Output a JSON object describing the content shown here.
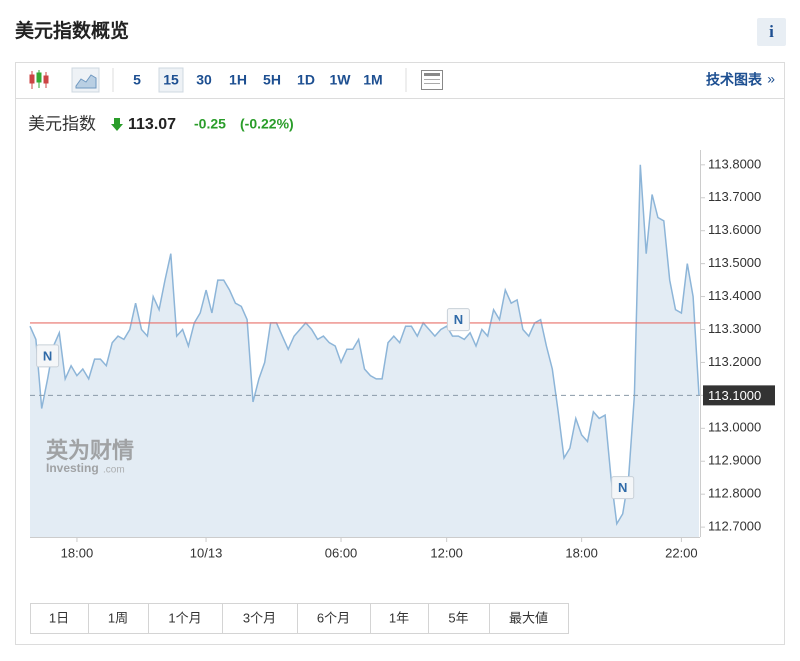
{
  "header": {
    "title": "美元指数概览",
    "info": "i"
  },
  "toolbar": {
    "intervals": [
      "5",
      "15",
      "30",
      "1H",
      "5H",
      "1D",
      "1W",
      "1M"
    ],
    "selected": "15",
    "tech_chart": "技术图表",
    "more": "»"
  },
  "quote": {
    "name": "美元指数",
    "price": "113.07",
    "change": "-0.25",
    "change_pct": "(-0.22%)"
  },
  "watermark": {
    "cn": "英为财情",
    "en": "Investing",
    "domain": ".com"
  },
  "ranges": [
    "1日",
    "1周",
    "1个月",
    "3个月",
    "6个月",
    "1年",
    "5年",
    "最大値"
  ],
  "chart_data": {
    "type": "area",
    "color": "#8db5d8",
    "values": [
      113.31,
      113.27,
      113.06,
      113.15,
      113.25,
      113.29,
      113.15,
      113.19,
      113.16,
      113.18,
      113.15,
      113.21,
      113.21,
      113.19,
      113.26,
      113.28,
      113.27,
      113.3,
      113.38,
      113.3,
      113.28,
      113.4,
      113.36,
      113.45,
      113.53,
      113.28,
      113.3,
      113.25,
      113.32,
      113.35,
      113.42,
      113.35,
      113.45,
      113.45,
      113.42,
      113.38,
      113.37,
      113.33,
      113.08,
      113.15,
      113.2,
      113.32,
      113.32,
      113.28,
      113.24,
      113.28,
      113.3,
      113.32,
      113.3,
      113.27,
      113.28,
      113.26,
      113.25,
      113.2,
      113.24,
      113.24,
      113.27,
      113.18,
      113.16,
      113.15,
      113.15,
      113.26,
      113.28,
      113.26,
      113.31,
      113.31,
      113.28,
      113.32,
      113.3,
      113.28,
      113.3,
      113.31,
      113.28,
      113.28,
      113.27,
      113.29,
      113.25,
      113.3,
      113.28,
      113.36,
      113.33,
      113.42,
      113.38,
      113.39,
      113.3,
      113.28,
      113.32,
      113.33,
      113.25,
      113.18,
      113.05,
      112.91,
      112.94,
      113.03,
      112.98,
      112.96,
      113.05,
      113.03,
      113.04,
      112.85,
      112.71,
      112.74,
      112.85,
      113.1,
      113.8,
      113.53,
      113.71,
      113.64,
      113.63,
      113.45,
      113.36,
      113.35,
      113.5,
      113.4,
      113.1
    ],
    "xlim": [
      0,
      114
    ],
    "xticks": [
      {
        "value": 8,
        "label": "18:00"
      },
      {
        "value": 30,
        "label": "10/13"
      },
      {
        "value": 53,
        "label": "06:00"
      },
      {
        "value": 71,
        "label": "12:00"
      },
      {
        "value": 94,
        "label": "18:00"
      },
      {
        "value": 111,
        "label": "22:00"
      }
    ],
    "ylim": [
      112.67,
      113.845
    ],
    "yticks": [
      {
        "value": 113.8,
        "label": "113.8000"
      },
      {
        "value": 113.7,
        "label": "113.7000"
      },
      {
        "value": 113.6,
        "label": "113.6000"
      },
      {
        "value": 113.5,
        "label": "113.5000"
      },
      {
        "value": 113.4,
        "label": "113.4000"
      },
      {
        "value": 113.3,
        "label": "113.3000"
      },
      {
        "value": 113.2,
        "label": "113.2000"
      },
      {
        "value": 113.1,
        "label": "113.1000"
      },
      {
        "value": 113.0,
        "label": "113.0000"
      },
      {
        "value": 112.9,
        "label": "112.9000"
      },
      {
        "value": 112.8,
        "label": "112.8000"
      },
      {
        "value": 112.7,
        "label": "112.7000"
      }
    ],
    "reference_line": {
      "value": 113.32,
      "color": "#e8706a"
    },
    "current": {
      "value": 113.1,
      "label": "113.1000"
    },
    "annotations": [
      {
        "text": "N",
        "x": 3,
        "y": 113.22
      },
      {
        "text": "N",
        "x": 73,
        "y": 113.33
      },
      {
        "text": "N",
        "x": 101,
        "y": 112.82
      }
    ]
  }
}
